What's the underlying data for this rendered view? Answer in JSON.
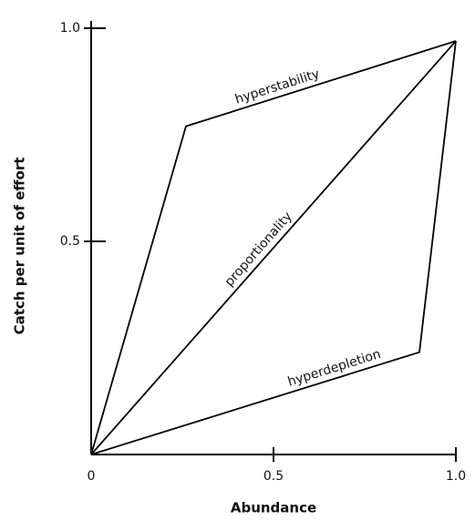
{
  "chart_data": {
    "type": "line",
    "xlabel": "Abundance",
    "ylabel": "Catch per unit of effort",
    "xlim": [
      0,
      1
    ],
    "ylim": [
      0,
      1
    ],
    "xticks": [
      0,
      0.5,
      {
        "value": 1,
        "label": "1.0"
      }
    ],
    "yticks": [
      0.5,
      {
        "value": 1,
        "label": "1.0"
      }
    ],
    "series": [
      {
        "name": "hyperstability",
        "color": "#000000",
        "x": [
          0,
          0.26,
          1
        ],
        "values": [
          0,
          0.77,
          0.97
        ]
      },
      {
        "name": "proportionality",
        "color": "#000000",
        "x": [
          0,
          1
        ],
        "values": [
          0,
          0.97
        ]
      },
      {
        "name": "hyperdepletion",
        "color": "#000000",
        "x": [
          0,
          0.9,
          1
        ],
        "values": [
          0,
          0.24,
          0.97
        ]
      }
    ]
  }
}
